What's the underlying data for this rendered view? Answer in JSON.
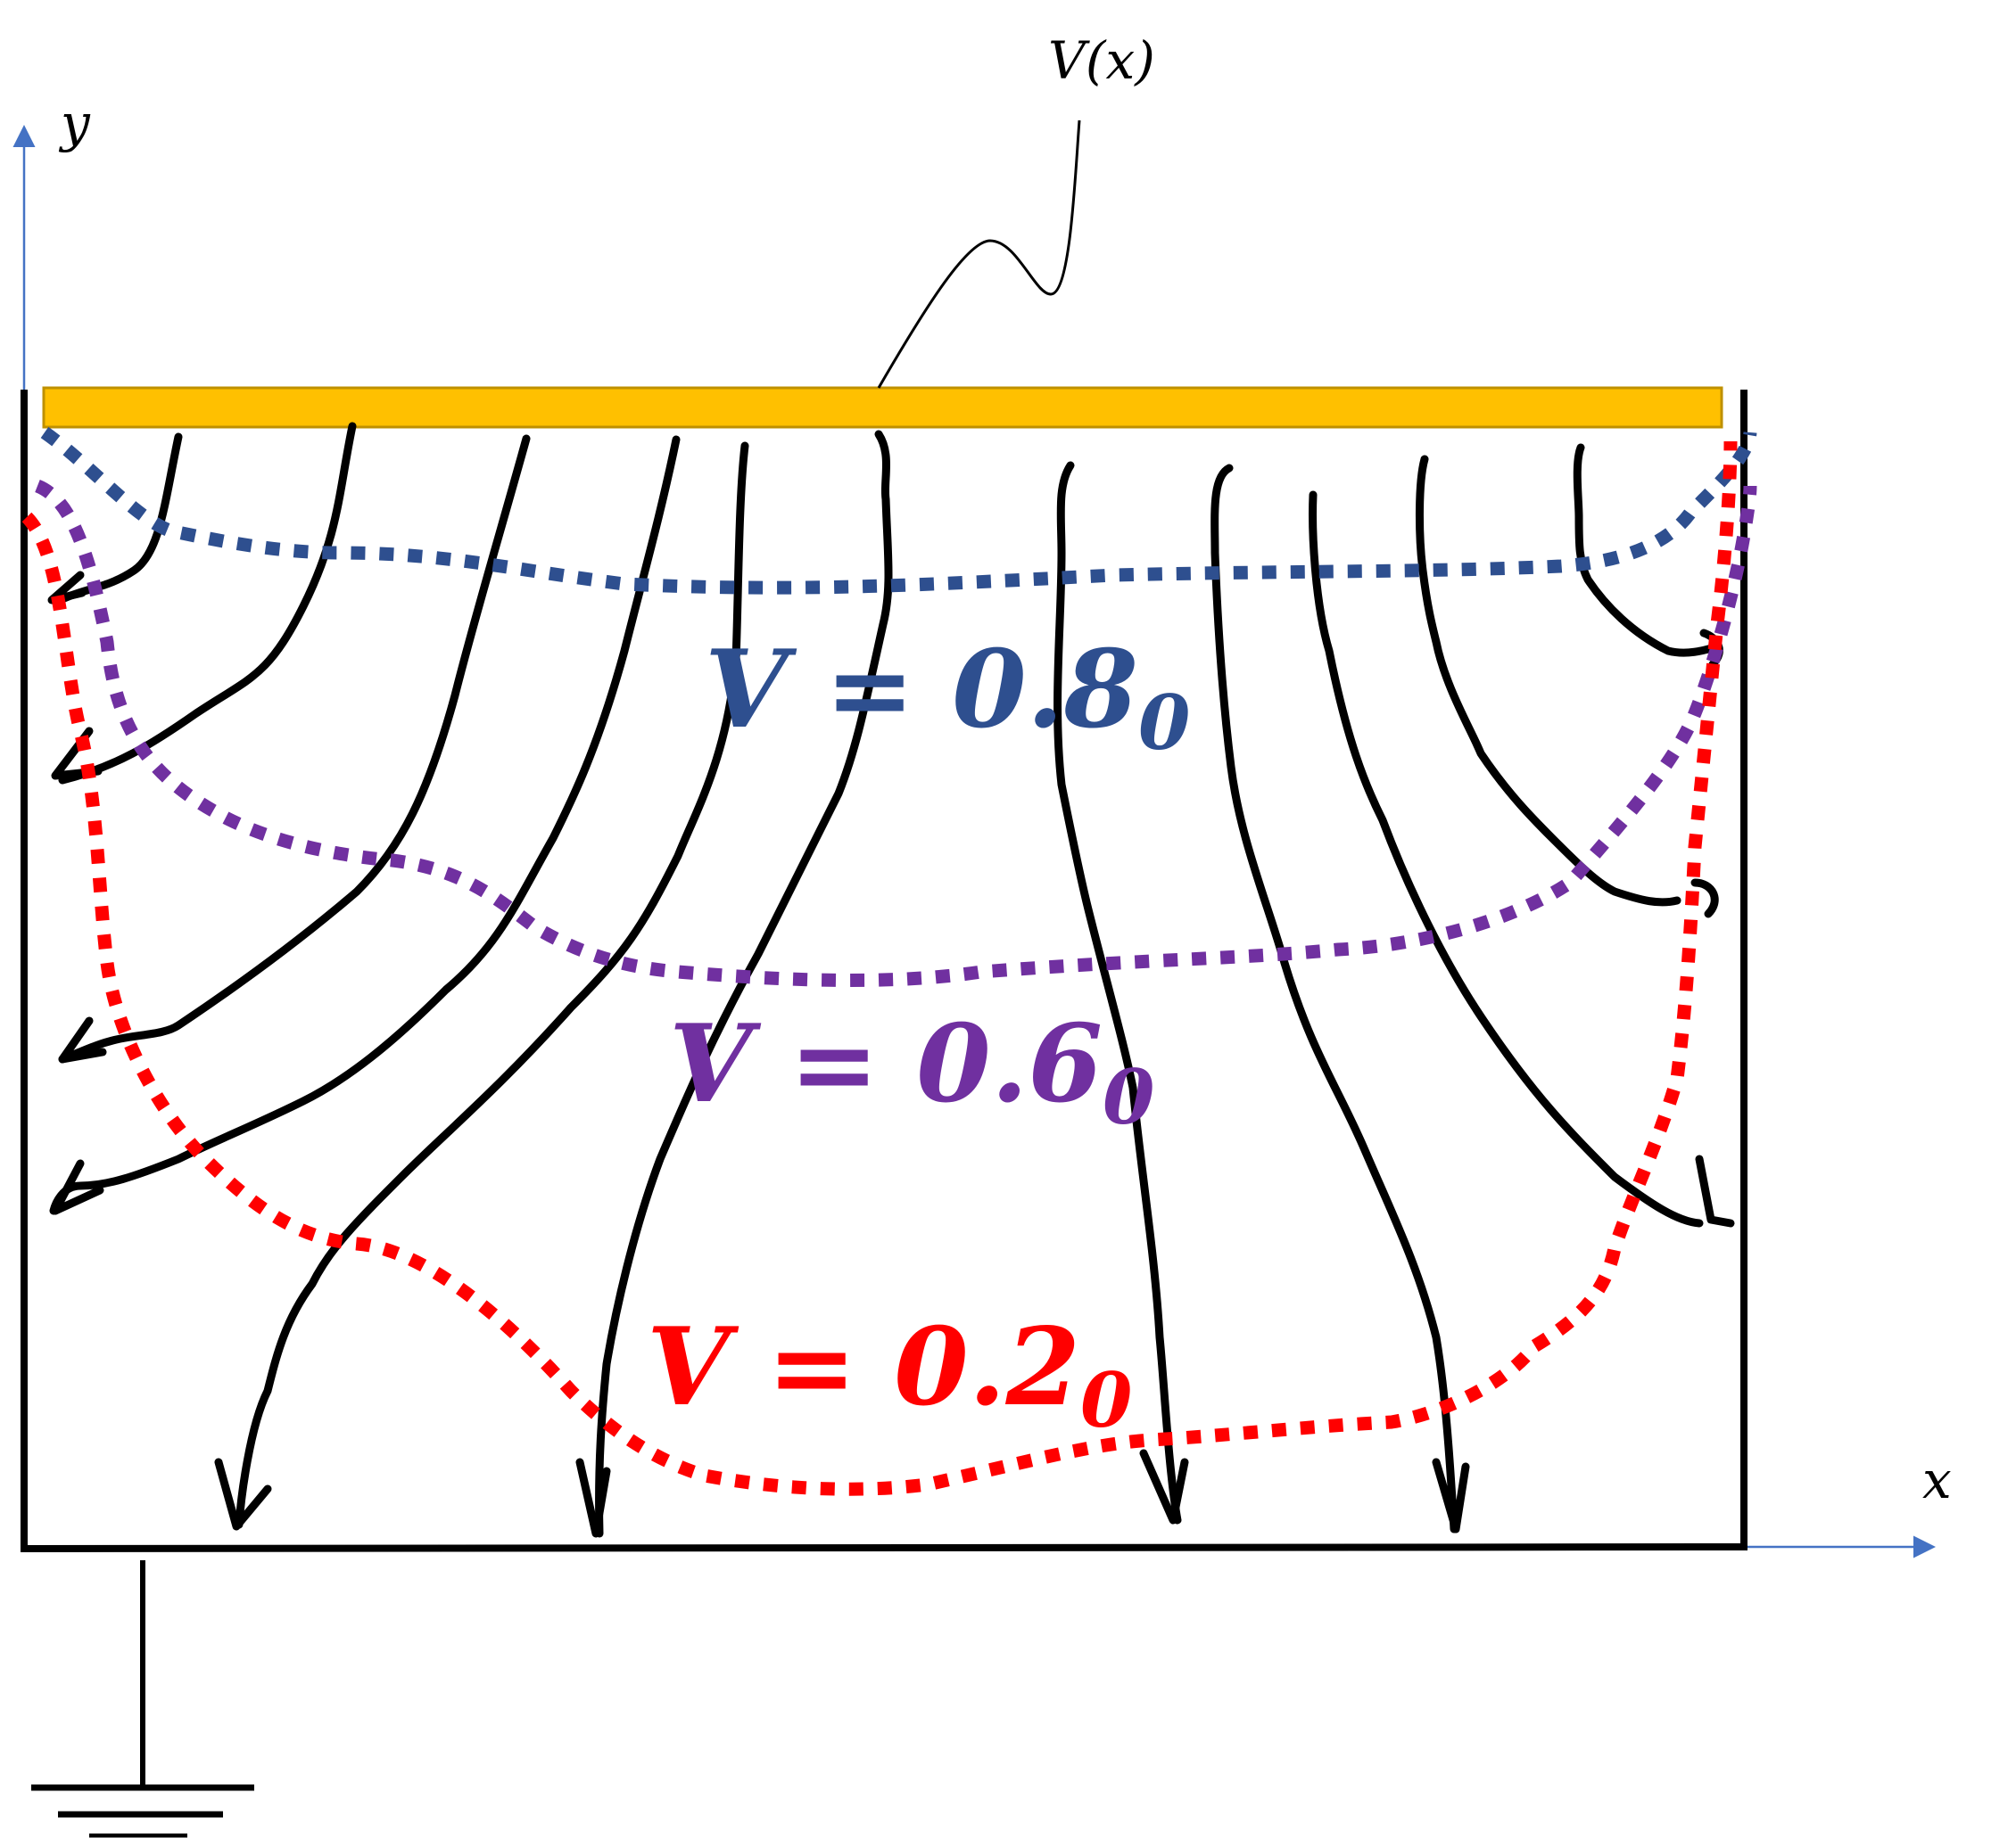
{
  "axes": {
    "x_label": "x",
    "y_label": "y"
  },
  "plate": {
    "label": "V(x)",
    "color": "#FFC000"
  },
  "equipotentials": [
    {
      "id": "v08",
      "label": "V = 0.8",
      "sub": "0",
      "color": "#2E4F8F"
    },
    {
      "id": "v06",
      "label": "V = 0.6",
      "sub": "0",
      "color": "#7030A0"
    },
    {
      "id": "v02",
      "label": "V = 0.2",
      "sub": "0",
      "color": "#FF0000"
    }
  ],
  "ground": {
    "icon": "ground-symbol-icon"
  },
  "colors": {
    "axis": "#4472C4",
    "field": "#000000",
    "box": "#000000"
  }
}
